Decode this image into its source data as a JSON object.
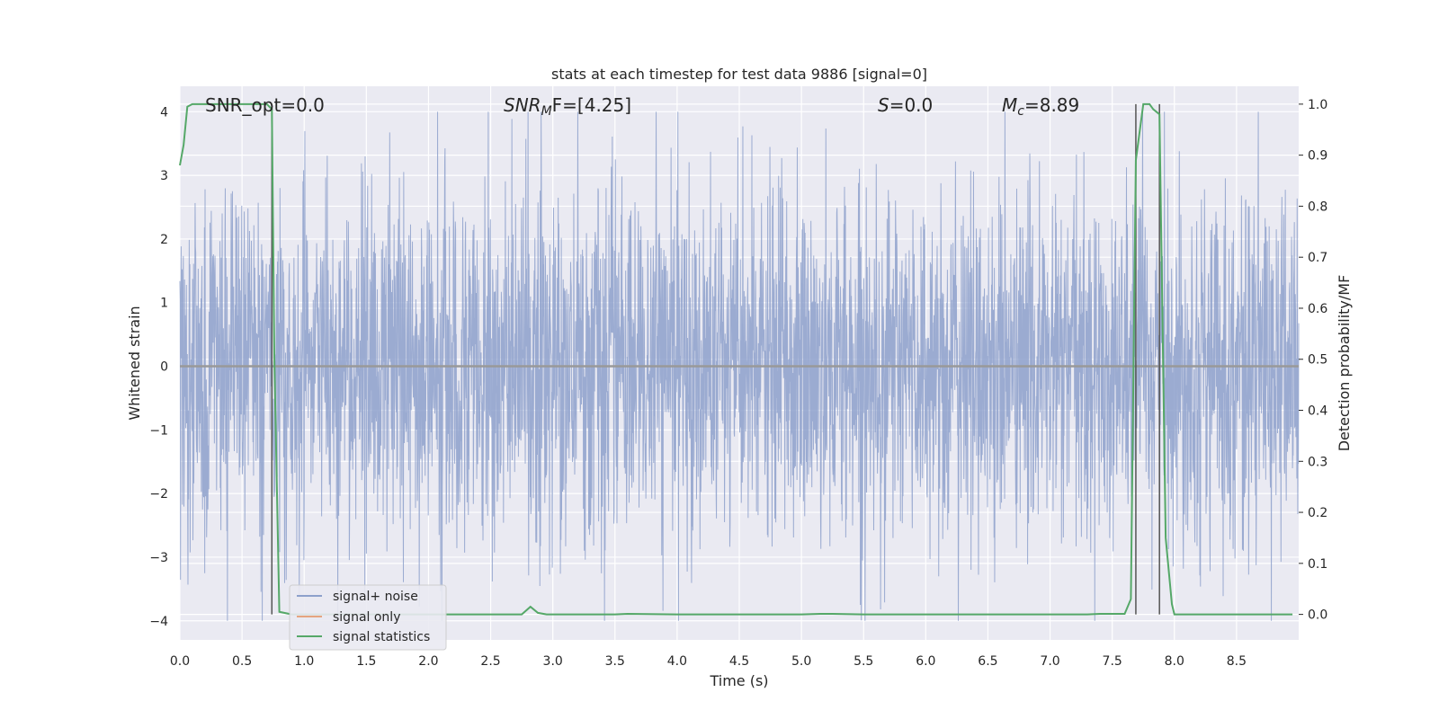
{
  "chart_data": {
    "type": "line",
    "title": "stats at each timestep for test data 9886 [signal=0]",
    "xlabel": "Time (s)",
    "ylabel": "Whitened strain",
    "ylabel_right": "Detection probability/MF",
    "xlim": [
      0.0,
      9.0
    ],
    "ylim": [
      -4.3,
      4.4
    ],
    "ylim_right": [
      -0.05,
      1.035
    ],
    "x_ticks": [
      "0.0",
      "0.5",
      "1.0",
      "1.5",
      "2.0",
      "2.5",
      "3.0",
      "3.5",
      "4.0",
      "4.5",
      "5.0",
      "5.5",
      "6.0",
      "6.5",
      "7.0",
      "7.5",
      "8.0",
      "8.5"
    ],
    "y_ticks": [
      "4",
      "3",
      "2",
      "1",
      "0",
      "−1",
      "−2",
      "−3",
      "−4"
    ],
    "y_ticks_right": [
      "1.0",
      "0.9",
      "0.8",
      "0.7",
      "0.6",
      "0.5",
      "0.4",
      "0.3",
      "0.2",
      "0.1",
      "0.0"
    ],
    "grid": true,
    "legend_position": "lower-left",
    "annotations": {
      "snr_opt": "SNR_opt=0.0",
      "snr_mf_main": "SNR",
      "snr_mf_sub": "M",
      "snr_mf_rest": "F=[4.25]",
      "s_main": "S",
      "s_rest": "=0.0",
      "mc_main": "M",
      "mc_sub": "c",
      "mc_rest": "=8.89"
    },
    "series": [
      {
        "name": "signal+ noise",
        "color": "#8da0cb",
        "description_values": "white gaussian noise, amplitude approx ±4",
        "y_range": [
          -4.0,
          4.0
        ]
      },
      {
        "name": "signal only",
        "color": "#e5a47f",
        "values_constant": 0.0
      },
      {
        "name": "signal statistics",
        "color": "#55a868",
        "axis": "right",
        "x": [
          0.0,
          0.03,
          0.06,
          0.1,
          0.15,
          0.2,
          0.3,
          0.4,
          0.5,
          0.6,
          0.7,
          0.74,
          0.76,
          0.8,
          0.9,
          1.0,
          1.5,
          2.0,
          2.5,
          2.75,
          2.82,
          2.88,
          2.95,
          3.0,
          3.5,
          3.6,
          4.0,
          4.5,
          5.0,
          5.15,
          5.25,
          5.5,
          6.0,
          6.5,
          7.0,
          7.3,
          7.4,
          7.6,
          7.65,
          7.69,
          7.75,
          7.8,
          7.83,
          7.88,
          7.93,
          7.98,
          8.0,
          8.5,
          8.95
        ],
        "values": [
          0.88,
          0.92,
          0.995,
          1.0,
          1.0,
          1.0,
          1.0,
          1.0,
          1.0,
          1.0,
          1.0,
          0.99,
          0.5,
          0.005,
          0.0,
          0.0,
          0.0,
          0.0,
          0.0,
          0.0,
          0.015,
          0.003,
          0.0,
          0.0,
          0.0,
          0.001,
          0.0,
          0.0,
          0.0,
          0.001,
          0.001,
          0.0,
          0.0,
          0.0,
          0.0,
          0.0,
          0.001,
          0.001,
          0.03,
          0.89,
          1.0,
          1.0,
          0.99,
          0.98,
          0.15,
          0.02,
          0.0,
          0.0,
          0.0
        ]
      }
    ],
    "vertical_lines_x": [
      0.74,
      7.69,
      7.88
    ],
    "vertical_lines_color": "#555555"
  }
}
